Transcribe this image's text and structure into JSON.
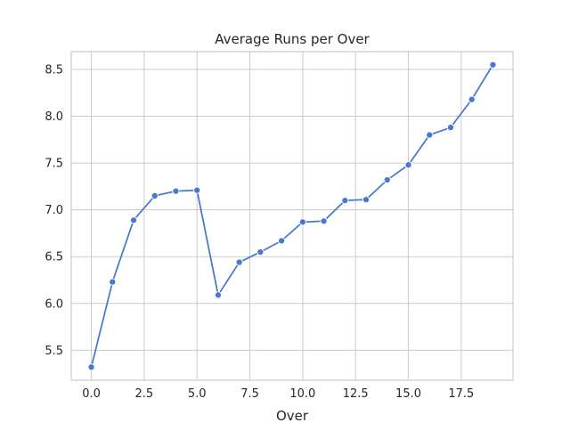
{
  "chart_data": {
    "type": "line",
    "title": "Average Runs per Over",
    "xlabel": "Over",
    "ylabel": "",
    "xlim": [
      -0.95,
      19.95
    ],
    "ylim": [
      5.18,
      8.69
    ],
    "x_ticks": [
      0.0,
      2.5,
      5.0,
      7.5,
      10.0,
      12.5,
      15.0,
      17.5
    ],
    "x_tick_labels": [
      "0.0",
      "2.5",
      "5.0",
      "7.5",
      "10.0",
      "12.5",
      "15.0",
      "17.5"
    ],
    "y_ticks": [
      5.5,
      6.0,
      6.5,
      7.0,
      7.5,
      8.0,
      8.5
    ],
    "y_tick_labels": [
      "5.5",
      "6.0",
      "6.5",
      "7.0",
      "7.5",
      "8.0",
      "8.5"
    ],
    "grid": true,
    "series": [
      {
        "x": [
          0,
          1,
          2,
          3,
          4,
          5,
          6,
          7,
          8,
          9,
          10,
          11,
          12,
          13,
          14,
          15,
          16,
          17,
          18,
          19
        ],
        "values": [
          5.32,
          6.23,
          6.89,
          7.15,
          7.2,
          7.21,
          6.09,
          6.44,
          6.55,
          6.67,
          6.87,
          6.88,
          7.1,
          7.11,
          7.32,
          7.48,
          7.8,
          7.88,
          8.18,
          8.55
        ],
        "color": "#4878cf",
        "marker": "circle"
      }
    ]
  }
}
